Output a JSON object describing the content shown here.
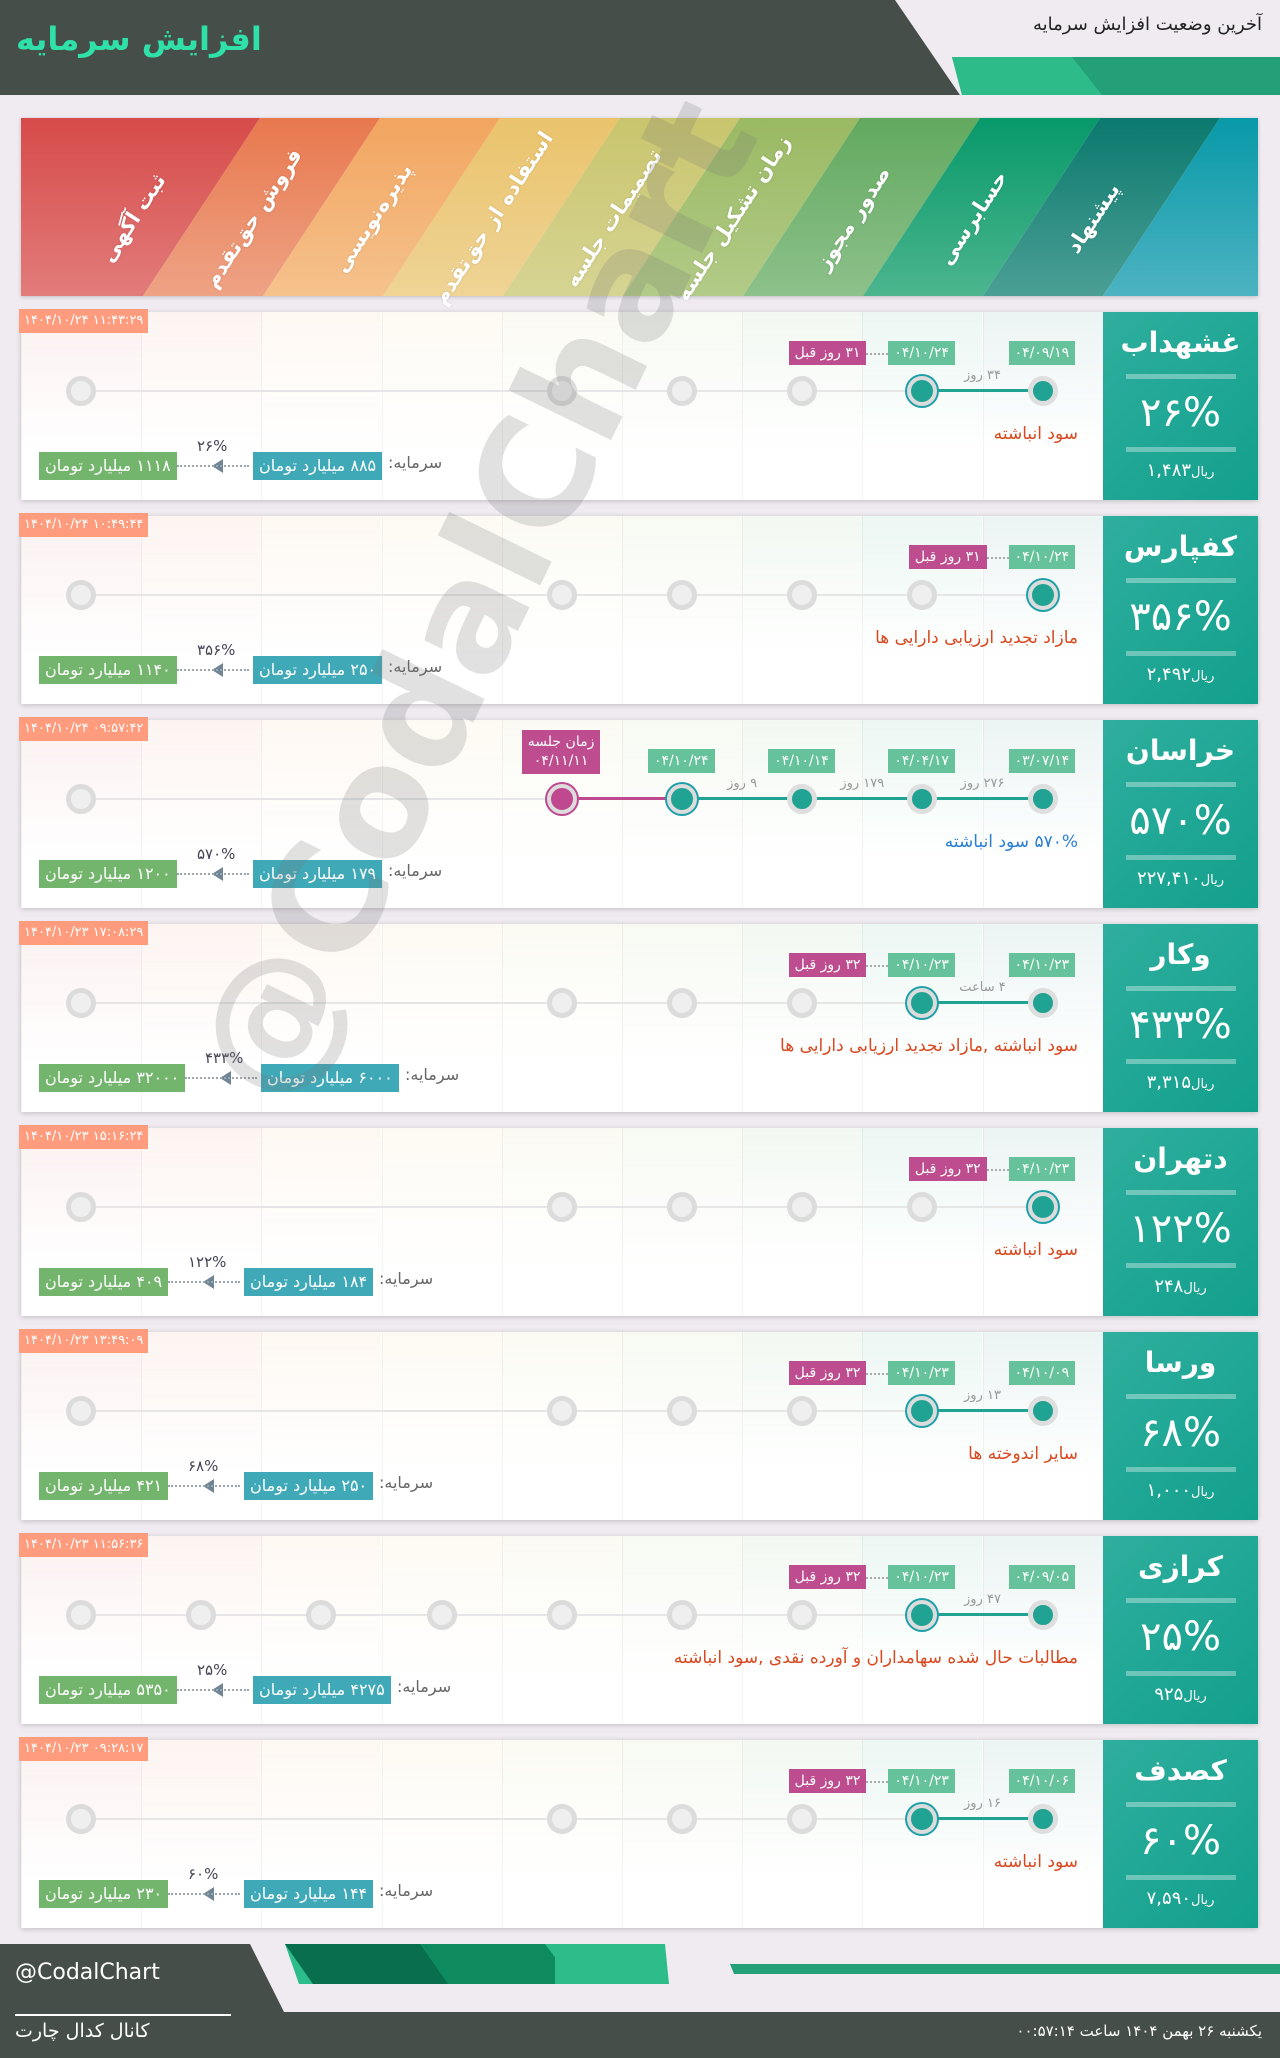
{
  "header": {
    "title": "افزایش سرمایه",
    "subtitle": "آخرین وضعیت افزایش سرمایه"
  },
  "stages": [
    "ثبت آگهی",
    "فروش حق‌تقدم",
    "پذیره‌نویسی",
    "استفاده از حق‌تقدم",
    "تصمیمات جلسه",
    "زمان تشکیل جلسه",
    "صدور مجوز",
    "حسابرسی",
    "پیشنهاد"
  ],
  "stage_colors": [
    [
      "#d64b49",
      "#e27c7b"
    ],
    [
      "#e8784e",
      "#eea385"
    ],
    [
      "#f2a55f",
      "#f5c28d"
    ],
    [
      "#eac36b",
      "#efd496"
    ],
    [
      "#c9c56d",
      "#d6d493"
    ],
    [
      "#9ab962",
      "#b2cb88"
    ],
    [
      "#62a95f",
      "#8dc18b"
    ],
    [
      "#07996a",
      "#4cb58e"
    ],
    [
      "#0b796e",
      "#4b9f95"
    ],
    [
      "#0899a8",
      "#4db3c2"
    ]
  ],
  "colors": {
    "accent": "#21a394",
    "meeting": "#bd4d8f",
    "timestamp": "#ff9c7e",
    "capital_from": "#3fa9b8",
    "capital_to": "#74b56d",
    "source": "#d9481f",
    "source_alt": "#2a7fd4",
    "dark": "#464e4a"
  },
  "labels": {
    "capital": "سرمایه:",
    "currency": "ریال"
  },
  "watermark": "@CodalChart",
  "cards": [
    {
      "symbol": "غشهداب",
      "percent": "۲۶%",
      "price": "۱,۴۸۳",
      "timestamp": "۱۴۰۴/۱۰/۲۴ ۱۱:۴۳:۲۹",
      "visible_stages": [
        0,
        4,
        5,
        6,
        7,
        8
      ],
      "steps": [
        {
          "stage": 8,
          "date": "۰۴/۰۹/۱۹"
        },
        {
          "stage": 7,
          "date": "۰۴/۱۰/۲۴"
        }
      ],
      "durations": [
        "۳۴ روز"
      ],
      "ago": "۳۱ روز قبل",
      "source": "سود انباشته",
      "capital_from": "۸۸۵ میلیارد تومان",
      "capital_to": "۱۱۱۸ میلیارد تومان",
      "increase": "۲۶%"
    },
    {
      "symbol": "کفپارس",
      "percent": "۳۵۶%",
      "price": "۲,۴۹۲",
      "timestamp": "۱۴۰۴/۱۰/۲۴ ۱۰:۴۹:۴۴",
      "visible_stages": [
        0,
        4,
        5,
        6,
        7,
        8
      ],
      "steps": [
        {
          "stage": 8,
          "date": "۰۴/۱۰/۲۴"
        }
      ],
      "durations": [],
      "ago": "۳۱ روز قبل",
      "source": "مازاد تجدید ارزیابی دارایی ها",
      "capital_from": "۲۵۰ میلیارد تومان",
      "capital_to": "۱۱۴۰ میلیارد تومان",
      "increase": "۳۵۶%"
    },
    {
      "symbol": "خراسان",
      "percent": "۵۷۰%",
      "price": "۲۲۷,۴۱۰",
      "timestamp": "۱۴۰۴/۱۰/۲۴ ۰۹:۵۷:۴۲",
      "visible_stages": [
        0,
        4,
        5,
        6,
        7,
        8
      ],
      "steps": [
        {
          "stage": 8,
          "date": "۰۳/۰۷/۱۴"
        },
        {
          "stage": 7,
          "date": "۰۴/۰۴/۱۷"
        },
        {
          "stage": 6,
          "date": "۰۴/۱۰/۱۴"
        },
        {
          "stage": 5,
          "date": "۰۴/۱۰/۲۴"
        }
      ],
      "durations": [
        "۲۷۶ روز",
        "۱۷۹ روز",
        "۹ روز"
      ],
      "meeting": {
        "stage": 4,
        "label": "زمان جلسه",
        "date": "۰۴/۱۱/۱۱"
      },
      "source": "۵۷۰% سود انباشته",
      "source_style": "alt",
      "capital_from": "۱۷۹ میلیارد تومان",
      "capital_to": "۱۲۰۰ میلیارد تومان",
      "increase": "۵۷۰%"
    },
    {
      "symbol": "وکار",
      "percent": "۴۳۳%",
      "price": "۳,۳۱۵",
      "timestamp": "۱۴۰۴/۱۰/۲۳ ۱۷:۰۸:۲۹",
      "visible_stages": [
        0,
        4,
        5,
        6,
        7,
        8
      ],
      "steps": [
        {
          "stage": 8,
          "date": "۰۴/۱۰/۲۳"
        },
        {
          "stage": 7,
          "date": "۰۴/۱۰/۲۳"
        }
      ],
      "durations": [
        "۴ ساعت"
      ],
      "ago": "۳۲ روز قبل",
      "source": "سود انباشته ,مازاد تجدید ارزیابی دارایی ها",
      "capital_from": "۶۰۰۰ میلیارد تومان",
      "capital_to": "۳۲۰۰۰ میلیارد تومان",
      "increase": "۴۳۳%"
    },
    {
      "symbol": "دتهران",
      "percent": "۱۲۲%",
      "price": "۲۴۸",
      "timestamp": "۱۴۰۴/۱۰/۲۳ ۱۵:۱۶:۲۴",
      "visible_stages": [
        0,
        4,
        5,
        6,
        7,
        8
      ],
      "steps": [
        {
          "stage": 8,
          "date": "۰۴/۱۰/۲۳"
        }
      ],
      "durations": [],
      "ago": "۳۲ روز قبل",
      "source": "سود انباشته",
      "capital_from": "۱۸۴ میلیارد تومان",
      "capital_to": "۴۰۹ میلیارد تومان",
      "increase": "۱۲۲%"
    },
    {
      "symbol": "ورسا",
      "percent": "۶۸%",
      "price": "۱,۰۰۰",
      "timestamp": "۱۴۰۴/۱۰/۲۳ ۱۳:۴۹:۰۹",
      "visible_stages": [
        0,
        4,
        5,
        6,
        7,
        8
      ],
      "steps": [
        {
          "stage": 8,
          "date": "۰۴/۱۰/۰۹"
        },
        {
          "stage": 7,
          "date": "۰۴/۱۰/۲۳"
        }
      ],
      "durations": [
        "۱۳ روز"
      ],
      "ago": "۳۲ روز قبل",
      "source": "سایر اندوخته ها",
      "capital_from": "۲۵۰ میلیارد تومان",
      "capital_to": "۴۲۱ میلیارد تومان",
      "increase": "۶۸%"
    },
    {
      "symbol": "کرازی",
      "percent": "۲۵%",
      "price": "۹۲۵",
      "timestamp": "۱۴۰۴/۱۰/۲۳ ۱۱:۵۶:۳۶",
      "visible_stages": [
        0,
        1,
        2,
        3,
        4,
        5,
        6,
        7,
        8
      ],
      "steps": [
        {
          "stage": 8,
          "date": "۰۴/۰۹/۰۵"
        },
        {
          "stage": 7,
          "date": "۰۴/۱۰/۲۳"
        }
      ],
      "durations": [
        "۴۷ روز"
      ],
      "ago": "۳۲ روز قبل",
      "source": "مطالبات حال شده سهامداران و آورده نقدی ,سود انباشته",
      "capital_from": "۴۲۷۵ میلیارد تومان",
      "capital_to": "۵۳۵۰ میلیارد تومان",
      "increase": "۲۵%"
    },
    {
      "symbol": "کصدف",
      "percent": "۶۰%",
      "price": "۷,۵۹۰",
      "timestamp": "۱۴۰۴/۱۰/۲۳ ۰۹:۲۸:۱۷",
      "visible_stages": [
        0,
        4,
        5,
        6,
        7,
        8
      ],
      "steps": [
        {
          "stage": 8,
          "date": "۰۴/۱۰/۰۶"
        },
        {
          "stage": 7,
          "date": "۰۴/۱۰/۲۳"
        }
      ],
      "durations": [
        "۱۶ روز"
      ],
      "ago": "۳۲ روز قبل",
      "source": "سود انباشته",
      "capital_from": "۱۴۴ میلیارد تومان",
      "capital_to": "۲۳۰ میلیارد تومان",
      "increase": "۶۰%"
    }
  ],
  "footer": {
    "handle": "@CodalChart",
    "channel": "کانال کدال چارت",
    "date": "یکشنبه ۲۶ بهمن ۱۴۰۴ ساعت ۰۰:۵۷:۱۴"
  }
}
